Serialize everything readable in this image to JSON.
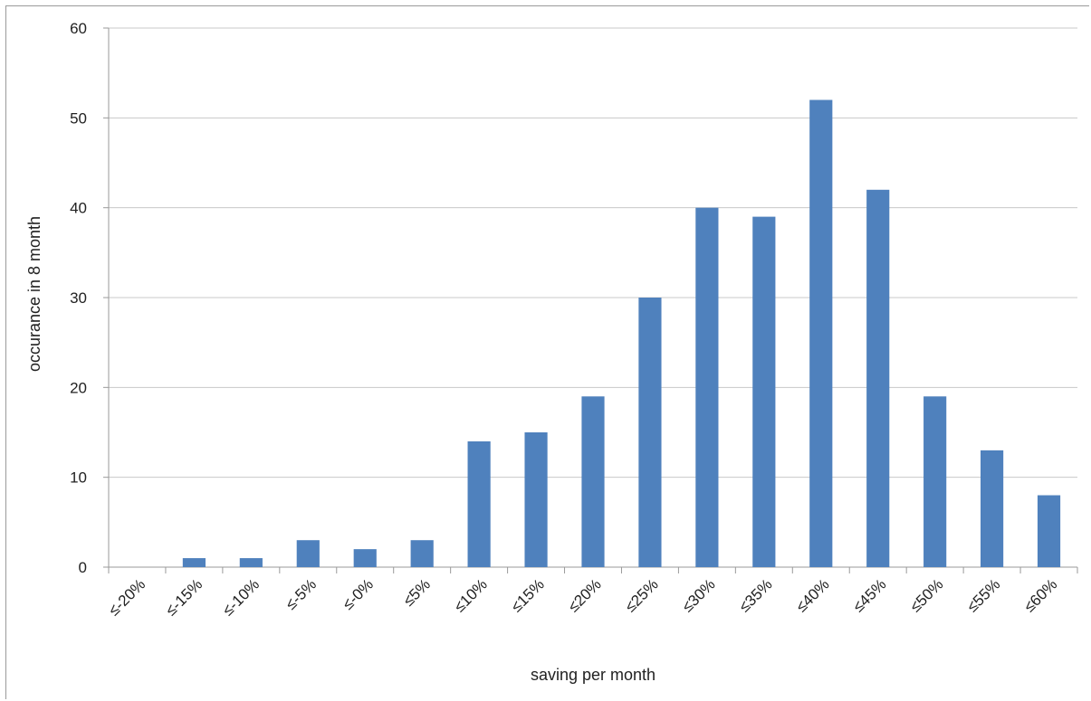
{
  "chart_data": {
    "type": "bar",
    "title": "",
    "xlabel": "saving per month",
    "ylabel": "occurance in 8 month",
    "ylim": [
      0,
      60
    ],
    "yticks": [
      "0",
      "10",
      "20",
      "30",
      "40",
      "50",
      "60"
    ],
    "categories": [
      "≤-20%",
      "≤-15%",
      "≤-10%",
      "≤-5%",
      "≤-0%",
      "≤5%",
      "≤10%",
      "≤15%",
      "≤20%",
      "≤25%",
      "≤30%",
      "≤35%",
      "≤40%",
      "≤45%",
      "≤50%",
      "≤55%",
      "≤60%"
    ],
    "values": [
      0,
      1,
      1,
      3,
      2,
      3,
      14,
      15,
      19,
      30,
      40,
      39,
      52,
      42,
      19,
      13,
      8
    ],
    "grid": true,
    "bar_color": "#4f81bd",
    "grid_color": "#c8c8c8",
    "axis_color": "#9a9a9a"
  }
}
